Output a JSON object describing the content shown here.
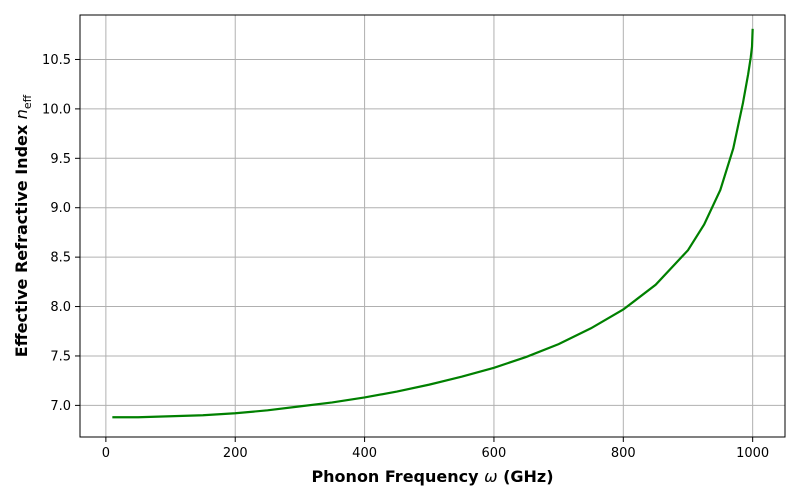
{
  "chart_data": {
    "type": "line",
    "title": "",
    "xlabel_main": "Phonon Frequency ",
    "xlabel_symbol": "ω",
    "xlabel_unit": " (GHz)",
    "ylabel_main": "Effective Refractive Index ",
    "ylabel_symbol": "n",
    "ylabel_subscript": "eff",
    "xlim": [
      -40,
      1050
    ],
    "ylim": [
      6.68,
      10.95
    ],
    "xticks": [
      0,
      200,
      400,
      600,
      800,
      1000
    ],
    "xtick_labels": [
      "0",
      "200",
      "400",
      "600",
      "800",
      "1000"
    ],
    "yticks": [
      7.0,
      7.5,
      8.0,
      8.5,
      9.0,
      9.5,
      10.0,
      10.5
    ],
    "ytick_labels": [
      "7.0",
      "7.5",
      "8.0",
      "8.5",
      "9.0",
      "9.5",
      "10.0",
      "10.5"
    ],
    "grid": true,
    "line_color": "#008000",
    "series": [
      {
        "x": [
          10,
          50,
          100,
          150,
          200,
          250,
          300,
          350,
          400,
          450,
          500,
          550,
          600,
          650,
          700,
          750,
          800,
          850,
          900,
          925,
          950,
          970,
          985,
          993,
          997,
          999,
          1000
        ],
        "y": [
          6.88,
          6.88,
          6.89,
          6.9,
          6.92,
          6.95,
          6.99,
          7.03,
          7.08,
          7.14,
          7.21,
          7.29,
          7.38,
          7.49,
          7.62,
          7.78,
          7.97,
          8.22,
          8.57,
          8.83,
          9.18,
          9.6,
          10.06,
          10.35,
          10.52,
          10.63,
          10.81
        ]
      }
    ]
  }
}
